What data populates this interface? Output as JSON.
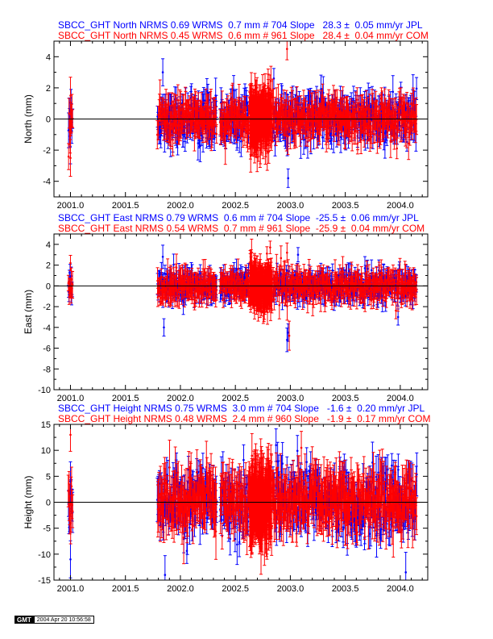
{
  "colors": {
    "jpl": "#0000ff",
    "com": "#ff0000",
    "axis": "#000000"
  },
  "panels": [
    {
      "id": "north",
      "header_lines": [
        {
          "text": "SBCC_GHT North NRMS 0.69 WRMS  0.7 mm # 704 Slope   28.3 ±  0.05 mm/yr JPL",
          "color": "#0000ff"
        },
        {
          "text": "SBCC_GHT North NRMS 0.45 WRMS  0.6 mm # 961 Slope   28.4 ±  0.04 mm/yr COM",
          "color": "#ff0000"
        }
      ]
    },
    {
      "id": "east",
      "header_lines": [
        {
          "text": "SBCC_GHT East NRMS 0.79 WRMS  0.6 mm # 704 Slope  -25.5 ±  0.06 mm/yr JPL",
          "color": "#0000ff"
        },
        {
          "text": "SBCC_GHT East NRMS 0.54 WRMS  0.7 mm # 961 Slope  -25.9 ±  0.04 mm/yr COM",
          "color": "#ff0000"
        }
      ]
    },
    {
      "id": "height",
      "header_lines": [
        {
          "text": "SBCC_GHT Height NRMS 0.75 WRMS  3.0 mm # 704 Slope   -1.6 ±  0.20 mm/yr JPL",
          "color": "#0000ff"
        },
        {
          "text": "SBCC_GHT Height NRMS 0.48 WRMS  2.4 mm # 960 Slope   -1.9 ±  0.17 mm/yr COM",
          "color": "#ff0000"
        }
      ]
    }
  ],
  "stamp": {
    "logo": "GMT",
    "date": "2004 Apr 20 10:56:58"
  },
  "chart_data": [
    {
      "type": "scatter",
      "component": "North",
      "ylabel": "North (mm)",
      "xlim": [
        2000.85,
        2004.25
      ],
      "ylim": [
        -5,
        5
      ],
      "xticks": [
        2001.0,
        2001.5,
        2002.0,
        2002.5,
        2003.0,
        2003.5,
        2004.0
      ],
      "xtick_labels": [
        "2001.0",
        "2001.5",
        "2002.0",
        "2002.5",
        "2003.0",
        "2003.5",
        "2004.0"
      ],
      "yticks": [
        -4,
        -2,
        0,
        2,
        4
      ],
      "zero_line": 0,
      "error_bars": true,
      "series": [
        {
          "name": "JPL",
          "color": "#0000ff",
          "count": 704,
          "nrms": 0.69,
          "wrms_mm": 0.7,
          "slope_mm_yr": 28.3,
          "slope_sigma_mm_yr": 0.05,
          "scatter_sigma_mm": 0.7,
          "error_bar_mm": 0.8,
          "segments": [
            [
              2000.98,
              2001.02
            ],
            [
              2001.79,
              2002.33
            ],
            [
              2002.36,
              2002.62
            ],
            [
              2002.84,
              2004.15
            ]
          ],
          "outliers": [
            [
              2001.84,
              3.0
            ],
            [
              2002.98,
              -3.8
            ],
            [
              2002.85,
              2.6
            ],
            [
              2001.0,
              -1.8
            ],
            [
              2001.0,
              0.3
            ]
          ]
        },
        {
          "name": "COM",
          "color": "#ff0000",
          "count": 961,
          "nrms": 0.45,
          "wrms_mm": 0.6,
          "slope_mm_yr": 28.4,
          "slope_sigma_mm_yr": 0.04,
          "scatter_sigma_mm": 0.6,
          "error_bar_mm": 0.9,
          "segments": [
            [
              2000.98,
              2001.02
            ],
            [
              2001.79,
              2002.33
            ],
            [
              2002.36,
              2004.15
            ]
          ],
          "dense_segment": [
            2002.63,
            2002.83
          ],
          "outliers": [
            [
              2002.97,
              4.5
            ],
            [
              2001.0,
              -2.5
            ],
            [
              2001.0,
              1.5
            ]
          ]
        }
      ]
    },
    {
      "type": "scatter",
      "component": "East",
      "ylabel": "East (mm)",
      "xlim": [
        2000.85,
        2004.25
      ],
      "ylim": [
        -10,
        5
      ],
      "xticks": [
        2001.0,
        2001.5,
        2002.0,
        2002.5,
        2003.0,
        2003.5,
        2004.0
      ],
      "xtick_labels": [
        "2001.0",
        "2001.5",
        "2002.0",
        "2002.5",
        "2003.0",
        "2003.5",
        "2004.0"
      ],
      "yticks": [
        -10,
        -8,
        -6,
        -4,
        -2,
        0,
        2,
        4
      ],
      "zero_line": 0,
      "error_bars": true,
      "series": [
        {
          "name": "JPL",
          "color": "#0000ff",
          "count": 704,
          "nrms": 0.79,
          "wrms_mm": 0.6,
          "slope_mm_yr": -25.5,
          "slope_sigma_mm_yr": 0.06,
          "scatter_sigma_mm": 0.6,
          "error_bar_mm": 0.9,
          "segments": [
            [
              2000.98,
              2001.02
            ],
            [
              2001.79,
              2002.33
            ],
            [
              2002.36,
              2002.62
            ],
            [
              2002.84,
              2004.15
            ]
          ],
          "outliers": [
            [
              2001.84,
              2.8
            ],
            [
              2001.85,
              -4.0
            ],
            [
              2002.97,
              -5.2
            ],
            [
              2003.07,
              3.0
            ],
            [
              2002.98,
              -4.5
            ],
            [
              2003.98,
              -3.0
            ]
          ]
        },
        {
          "name": "COM",
          "color": "#ff0000",
          "count": 961,
          "nrms": 0.54,
          "wrms_mm": 0.7,
          "slope_mm_yr": -25.9,
          "slope_sigma_mm_yr": 0.04,
          "scatter_sigma_mm": 0.7,
          "error_bar_mm": 1.0,
          "segments": [
            [
              2000.98,
              2001.02
            ],
            [
              2001.79,
              2002.33
            ],
            [
              2002.36,
              2004.15
            ]
          ],
          "dense_segment": [
            2002.63,
            2002.83
          ],
          "outliers": [
            [
              2002.97,
              3.2
            ],
            [
              2001.0,
              2.2
            ],
            [
              2002.99,
              -4.8
            ]
          ]
        }
      ]
    },
    {
      "type": "scatter",
      "component": "Height",
      "ylabel": "Height (mm)",
      "xlim": [
        2000.85,
        2004.25
      ],
      "ylim": [
        -15,
        15
      ],
      "xticks": [
        2001.0,
        2001.5,
        2002.0,
        2002.5,
        2003.0,
        2003.5,
        2004.0
      ],
      "xtick_labels": [
        "2001.0",
        "2001.5",
        "2002.0",
        "2002.5",
        "2003.0",
        "2003.5",
        "2004.0"
      ],
      "yticks": [
        -15,
        -10,
        -5,
        0,
        5,
        10,
        15
      ],
      "zero_line": 0,
      "error_bars": true,
      "series": [
        {
          "name": "JPL",
          "color": "#0000ff",
          "count": 704,
          "nrms": 0.75,
          "wrms_mm": 3.0,
          "slope_mm_yr": -1.6,
          "slope_sigma_mm_yr": 0.2,
          "scatter_sigma_mm": 3.0,
          "error_bar_mm": 3.0,
          "segments": [
            [
              2000.98,
              2001.02
            ],
            [
              2001.79,
              2002.33
            ],
            [
              2002.36,
              2002.62
            ],
            [
              2002.84,
              2004.15
            ]
          ],
          "outliers": [
            [
              2001.86,
              -14.0
            ],
            [
              2002.87,
              11.0
            ],
            [
              2004.05,
              -13.5
            ],
            [
              2001.0,
              4.0
            ],
            [
              2001.0,
              -11.0
            ]
          ]
        },
        {
          "name": "COM",
          "color": "#ff0000",
          "count": 960,
          "nrms": 0.48,
          "wrms_mm": 2.4,
          "slope_mm_yr": -1.9,
          "slope_sigma_mm_yr": 0.17,
          "scatter_sigma_mm": 2.4,
          "error_bar_mm": 4.0,
          "segments": [
            [
              2000.98,
              2001.02
            ],
            [
              2001.79,
              2002.33
            ],
            [
              2002.36,
              2004.15
            ]
          ],
          "dense_segment": [
            2002.63,
            2002.83
          ],
          "outliers": [
            [
              2001.0,
              13.0
            ],
            [
              2003.1,
              10.5
            ]
          ]
        }
      ]
    }
  ]
}
